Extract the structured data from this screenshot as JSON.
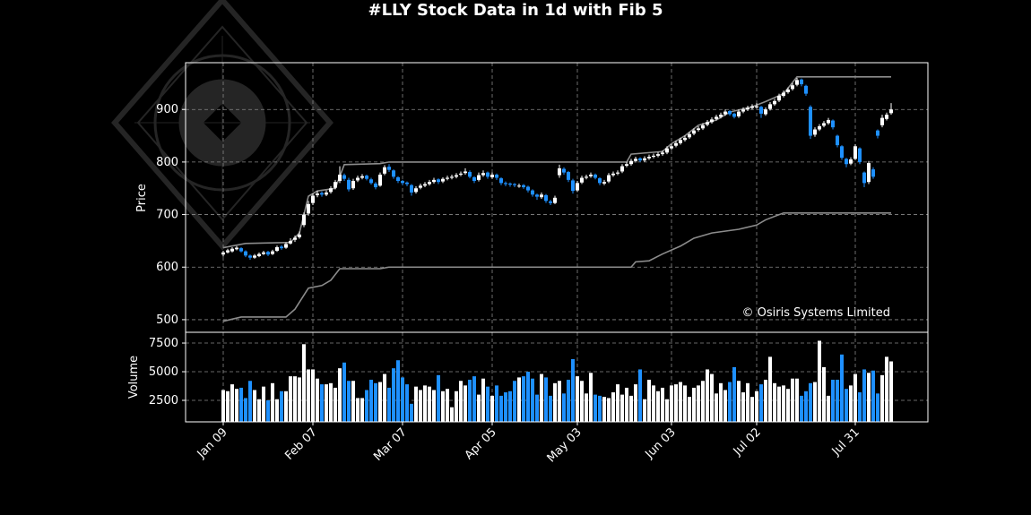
{
  "chart_data": {
    "type": "candlestick",
    "title": "#LLY Stock Data in 1d with Fib 5",
    "ylabel": "Price",
    "volume_label": "Volume",
    "annotation": "© Osiris Systems Limited",
    "up_color": "#ffffff",
    "down_color": "#1e90ff",
    "grid": true,
    "xlim": [
      -8.4,
      157.2
    ],
    "xticks": [
      {
        "value": 0,
        "label": "Jan 09"
      },
      {
        "value": 20,
        "label": "Feb 07"
      },
      {
        "value": 40,
        "label": "Mar 07"
      },
      {
        "value": 60,
        "label": "Apr 05"
      },
      {
        "value": 79,
        "label": "May 03"
      },
      {
        "value": 100,
        "label": "Jun 03"
      },
      {
        "value": 119,
        "label": "Jul 02"
      },
      {
        "value": 141,
        "label": "Jul 31"
      }
    ],
    "ylim": [
      476,
      989
    ],
    "yticks": [
      500,
      600,
      700,
      800,
      900
    ],
    "volume_ylim": [
      625,
      8440
    ],
    "volume_yticks": [
      2500,
      5000,
      7500
    ],
    "ohlc": [
      [
        624,
        631,
        620,
        628
      ],
      [
        628,
        635,
        626,
        632
      ],
      [
        630,
        638,
        628,
        635
      ],
      [
        634,
        640,
        632,
        637
      ],
      [
        636,
        638,
        628,
        630
      ],
      [
        630,
        632,
        619,
        622
      ],
      [
        622,
        624,
        614,
        618
      ],
      [
        618,
        625,
        616,
        622
      ],
      [
        621,
        628,
        619,
        625
      ],
      [
        625,
        631,
        623,
        628
      ],
      [
        629,
        631,
        621,
        624
      ],
      [
        625,
        633,
        623,
        630
      ],
      [
        631,
        641,
        629,
        638
      ],
      [
        639,
        642,
        633,
        636
      ],
      [
        637,
        647,
        635,
        644
      ],
      [
        645,
        655,
        643,
        650
      ],
      [
        652,
        660,
        648,
        656
      ],
      [
        657,
        668,
        654,
        662
      ],
      [
        680,
        704,
        676,
        700
      ],
      [
        702,
        726,
        698,
        720
      ],
      [
        722,
        740,
        718,
        736
      ],
      [
        737,
        745,
        733,
        740
      ],
      [
        741,
        744,
        734,
        738
      ],
      [
        738,
        746,
        735,
        742
      ],
      [
        743,
        754,
        740,
        750
      ],
      [
        751,
        766,
        748,
        762
      ],
      [
        764,
        792,
        760,
        776
      ],
      [
        775,
        778,
        764,
        768
      ],
      [
        766,
        770,
        744,
        748
      ],
      [
        750,
        768,
        747,
        764
      ],
      [
        765,
        774,
        762,
        770
      ],
      [
        770,
        777,
        767,
        773
      ],
      [
        774,
        776,
        765,
        768
      ],
      [
        767,
        770,
        757,
        760
      ],
      [
        759,
        762,
        748,
        752
      ],
      [
        755,
        780,
        753,
        776
      ],
      [
        778,
        794,
        775,
        790
      ],
      [
        791,
        796,
        781,
        785
      ],
      [
        784,
        786,
        768,
        772
      ],
      [
        771,
        773,
        760,
        764
      ],
      [
        764,
        766,
        756,
        760
      ],
      [
        761,
        763,
        754,
        758
      ],
      [
        756,
        758,
        736,
        742
      ],
      [
        743,
        754,
        740,
        750
      ],
      [
        751,
        759,
        748,
        755
      ],
      [
        755,
        762,
        752,
        758
      ],
      [
        758,
        766,
        755,
        762
      ],
      [
        762,
        770,
        759,
        766
      ],
      [
        767,
        769,
        758,
        762
      ],
      [
        763,
        771,
        760,
        768
      ],
      [
        768,
        774,
        765,
        770
      ],
      [
        770,
        776,
        767,
        772
      ],
      [
        772,
        779,
        769,
        775
      ],
      [
        776,
        782,
        773,
        778
      ],
      [
        779,
        788,
        776,
        782
      ],
      [
        781,
        784,
        769,
        772
      ],
      [
        771,
        773,
        760,
        764
      ],
      [
        766,
        780,
        763,
        775
      ],
      [
        775,
        784,
        772,
        779
      ],
      [
        780,
        782,
        768,
        772
      ],
      [
        771,
        780,
        768,
        776
      ],
      [
        776,
        778,
        766,
        770
      ],
      [
        769,
        771,
        756,
        760
      ],
      [
        760,
        763,
        754,
        758
      ],
      [
        759,
        761,
        753,
        757
      ],
      [
        758,
        760,
        752,
        756
      ],
      [
        755,
        759,
        751,
        755
      ],
      [
        756,
        758,
        749,
        752
      ],
      [
        753,
        755,
        742,
        746
      ],
      [
        746,
        748,
        734,
        738
      ],
      [
        738,
        740,
        728,
        734
      ],
      [
        733,
        742,
        730,
        738
      ],
      [
        737,
        739,
        722,
        726
      ],
      [
        725,
        728,
        718,
        722
      ],
      [
        722,
        736,
        720,
        732
      ],
      [
        775,
        795,
        770,
        788
      ],
      [
        787,
        790,
        776,
        780
      ],
      [
        781,
        783,
        762,
        766
      ],
      [
        765,
        768,
        740,
        745
      ],
      [
        746,
        764,
        743,
        760
      ],
      [
        761,
        774,
        758,
        770
      ],
      [
        770,
        776,
        767,
        772
      ],
      [
        773,
        780,
        770,
        776
      ],
      [
        776,
        778,
        767,
        770
      ],
      [
        769,
        771,
        756,
        760
      ],
      [
        759,
        766,
        756,
        762
      ],
      [
        763,
        779,
        760,
        775
      ],
      [
        775,
        782,
        772,
        778
      ],
      [
        778,
        784,
        775,
        780
      ],
      [
        782,
        796,
        779,
        792
      ],
      [
        793,
        800,
        790,
        796
      ],
      [
        796,
        806,
        793,
        802
      ],
      [
        802,
        810,
        799,
        806
      ],
      [
        807,
        809,
        800,
        803
      ],
      [
        803,
        811,
        800,
        807
      ],
      [
        807,
        814,
        804,
        810
      ],
      [
        810,
        816,
        807,
        812
      ],
      [
        812,
        819,
        809,
        815
      ],
      [
        815,
        822,
        812,
        818
      ],
      [
        818,
        830,
        815,
        826
      ],
      [
        826,
        834,
        823,
        830
      ],
      [
        831,
        840,
        828,
        836
      ],
      [
        836,
        846,
        833,
        842
      ],
      [
        842,
        850,
        839,
        846
      ],
      [
        847,
        857,
        844,
        853
      ],
      [
        854,
        864,
        851,
        860
      ],
      [
        861,
        868,
        858,
        864
      ],
      [
        864,
        874,
        861,
        870
      ],
      [
        871,
        880,
        868,
        876
      ],
      [
        876,
        885,
        873,
        881
      ],
      [
        882,
        890,
        879,
        886
      ],
      [
        886,
        894,
        883,
        890
      ],
      [
        891,
        900,
        888,
        896
      ],
      [
        897,
        899,
        888,
        891
      ],
      [
        892,
        894,
        883,
        886
      ],
      [
        887,
        900,
        884,
        896
      ],
      [
        896,
        904,
        893,
        900
      ],
      [
        900,
        907,
        897,
        903
      ],
      [
        903,
        910,
        900,
        906
      ],
      [
        904,
        912,
        902,
        906
      ],
      [
        905,
        907,
        884,
        892
      ],
      [
        891,
        904,
        888,
        900
      ],
      [
        901,
        914,
        898,
        910
      ],
      [
        910,
        920,
        907,
        916
      ],
      [
        917,
        930,
        914,
        926
      ],
      [
        926,
        936,
        923,
        932
      ],
      [
        933,
        942,
        930,
        938
      ],
      [
        939,
        950,
        936,
        946
      ],
      [
        947,
        960,
        944,
        956
      ],
      [
        957,
        959,
        944,
        948
      ],
      [
        945,
        947,
        926,
        930
      ],
      [
        905,
        908,
        844,
        850
      ],
      [
        852,
        866,
        848,
        862
      ],
      [
        862,
        872,
        859,
        868
      ],
      [
        869,
        878,
        866,
        874
      ],
      [
        874,
        884,
        871,
        880
      ],
      [
        879,
        881,
        862,
        866
      ],
      [
        850,
        852,
        828,
        832
      ],
      [
        830,
        832,
        804,
        808
      ],
      [
        806,
        808,
        790,
        796
      ],
      [
        797,
        809,
        794,
        805
      ],
      [
        806,
        834,
        804,
        830
      ],
      [
        826,
        828,
        796,
        800
      ],
      [
        780,
        782,
        752,
        760
      ],
      [
        762,
        802,
        758,
        798
      ],
      [
        786,
        790,
        768,
        772
      ],
      [
        860,
        862,
        845,
        850
      ],
      [
        870,
        890,
        866,
        884
      ],
      [
        882,
        894,
        879,
        890
      ],
      [
        893,
        912,
        890,
        900
      ]
    ],
    "volume": [
      3400,
      3300,
      3900,
      3500,
      3600,
      2700,
      4200,
      3400,
      2600,
      3700,
      2500,
      4000,
      2600,
      3300,
      3300,
      4600,
      4600,
      4500,
      7400,
      5200,
      5200,
      4400,
      3900,
      3900,
      4000,
      3600,
      5300,
      5800,
      4200,
      4200,
      2700,
      2700,
      3400,
      4300,
      4000,
      4100,
      4800,
      3600,
      5300,
      6000,
      4500,
      3900,
      2200,
      3700,
      3400,
      3800,
      3700,
      3400,
      4700,
      3300,
      3500,
      1900,
      3300,
      4200,
      3800,
      4300,
      4600,
      3000,
      4400,
      3700,
      2900,
      3800,
      2900,
      3200,
      3300,
      4200,
      4500,
      4600,
      5000,
      4400,
      3000,
      4800,
      4500,
      2900,
      4000,
      4200,
      3100,
      4300,
      6100,
      4600,
      4200,
      3100,
      4900,
      3000,
      2900,
      2800,
      2700,
      3200,
      3900,
      3000,
      3600,
      2900,
      3900,
      5200,
      2600,
      4300,
      3800,
      3300,
      3600,
      2600,
      3800,
      3900,
      4100,
      3800,
      2800,
      3600,
      3800,
      4200,
      5200,
      4800,
      3100,
      4000,
      3400,
      4100,
      5400,
      4200,
      3200,
      4000,
      2800,
      3300,
      3900,
      4300,
      6300,
      4000,
      3700,
      3800,
      3500,
      4400,
      4400,
      2900,
      3300,
      4000,
      4100,
      7700,
      5400,
      2900,
      4300,
      4300,
      6500,
      3500,
      3800,
      4800,
      3200,
      5200,
      4900,
      5100,
      3100,
      4700,
      6300,
      5900
    ],
    "lines": [
      {
        "color": "#8c8c8c",
        "x": [
          0,
          5,
          15,
          17,
          19,
          21,
          25,
          27,
          35,
          37,
          90,
          91,
          98,
          100,
          103,
          106,
          110,
          113,
          118,
          121,
          125,
          128,
          149
        ],
        "values": [
          637,
          645,
          647,
          665,
          735,
          745,
          750,
          795,
          797,
          800,
          800,
          815,
          820,
          835,
          850,
          870,
          880,
          895,
          905,
          915,
          930,
          962,
          962
        ]
      },
      {
        "color": "#8c8c8c",
        "x": [
          0,
          4,
          14,
          16,
          19,
          22,
          24,
          26,
          35,
          37,
          91,
          92,
          95,
          98,
          102,
          105,
          109,
          115,
          119,
          121,
          125,
          149
        ],
        "values": [
          497,
          505,
          505,
          520,
          560,
          565,
          575,
          597,
          597,
          600,
          600,
          610,
          612,
          625,
          640,
          655,
          665,
          672,
          680,
          690,
          703,
          703
        ]
      }
    ]
  }
}
